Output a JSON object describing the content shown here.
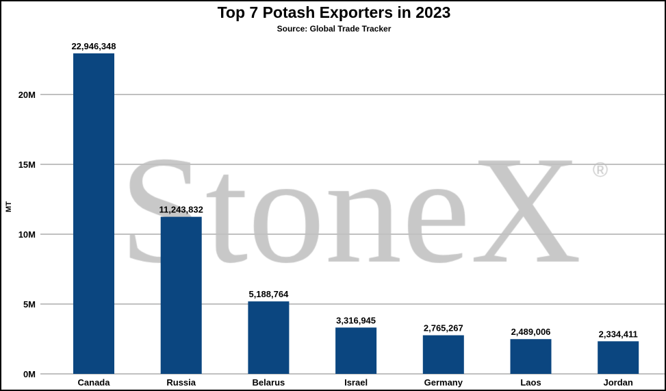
{
  "chart_data": {
    "type": "bar",
    "title": "Top 7 Potash Exporters in 2023",
    "subtitle": "Source: Global Trade Tracker",
    "xlabel": "",
    "ylabel": "MT",
    "ylim": [
      0,
      22946348
    ],
    "yticks": [
      0,
      5000000,
      10000000,
      15000000,
      20000000
    ],
    "ytick_labels": [
      "0M",
      "5M",
      "10M",
      "15M",
      "20M"
    ],
    "grid": true,
    "categories": [
      "Canada",
      "Russia",
      "Belarus",
      "Israel",
      "Germany",
      "Laos",
      "Jordan"
    ],
    "values": [
      22946348,
      11243832,
      5188764,
      3316945,
      2765267,
      2489006,
      2334411
    ],
    "data_labels": [
      "22,946,348",
      "11,243,832",
      "5,188,764",
      "3,316,945",
      "2,765,267",
      "2,489,006",
      "2,334,411"
    ],
    "bar_color": "#0b4680",
    "grid_color": "#c0c0c0",
    "watermark": "StoneX®"
  }
}
